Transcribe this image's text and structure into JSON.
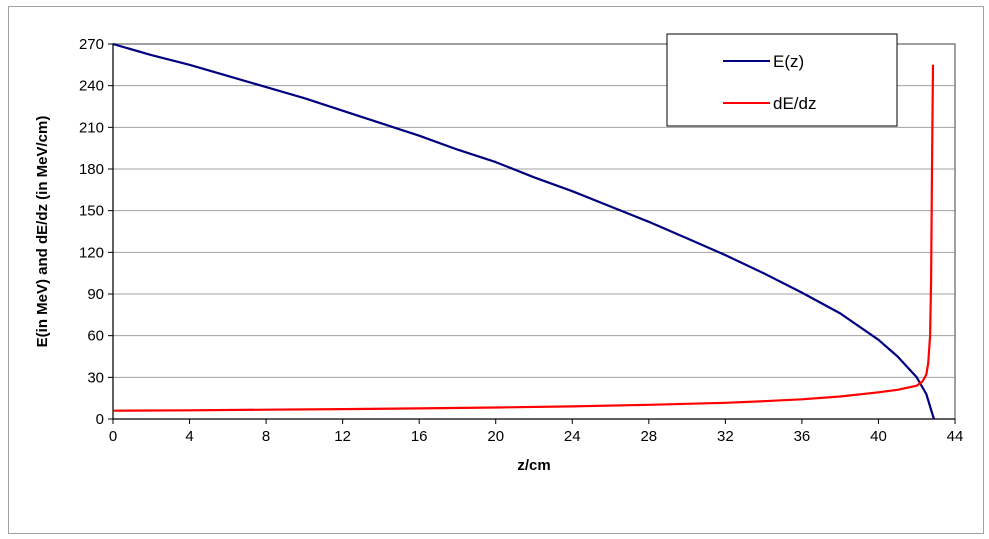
{
  "chart_data": {
    "type": "line",
    "xlabel": "z/cm",
    "ylabel": "E(in MeV) and dE/dz (in MeV/cm)",
    "xlim": [
      0,
      44
    ],
    "ylim": [
      0,
      270
    ],
    "x_ticks": [
      "0",
      "4",
      "8",
      "12",
      "16",
      "20",
      "24",
      "28",
      "32",
      "36",
      "40",
      "44"
    ],
    "y_ticks": [
      "0",
      "30",
      "60",
      "90",
      "120",
      "150",
      "180",
      "210",
      "240",
      "270"
    ],
    "grid": "horizontal",
    "legend_position": "top-right",
    "series": [
      {
        "name": "E(z)",
        "color": "#000080",
        "x": [
          0,
          2,
          4,
          6,
          8,
          10,
          12,
          14,
          16,
          18,
          20,
          22,
          24,
          26,
          28,
          30,
          32,
          34,
          36,
          38,
          40,
          41,
          42,
          42.5,
          42.9
        ],
        "y": [
          270,
          262,
          255,
          247,
          239,
          231,
          222,
          213,
          204,
          194,
          185,
          174,
          164,
          153,
          142,
          130,
          118,
          105,
          91,
          76,
          57,
          45,
          30,
          18,
          0
        ]
      },
      {
        "name": "dE/dz",
        "color": "#ff0000",
        "x": [
          0,
          4,
          8,
          12,
          16,
          20,
          24,
          28,
          32,
          34,
          36,
          38,
          40,
          41,
          42,
          42.3,
          42.5,
          42.6,
          42.7,
          42.75,
          42.8,
          42.85
        ],
        "y": [
          6,
          6.3,
          6.7,
          7.1,
          7.6,
          8.3,
          9.1,
          10.2,
          11.7,
          12.8,
          14.2,
          16.2,
          19.2,
          21,
          24,
          27,
          32,
          40,
          60,
          100,
          180,
          255
        ]
      }
    ]
  }
}
